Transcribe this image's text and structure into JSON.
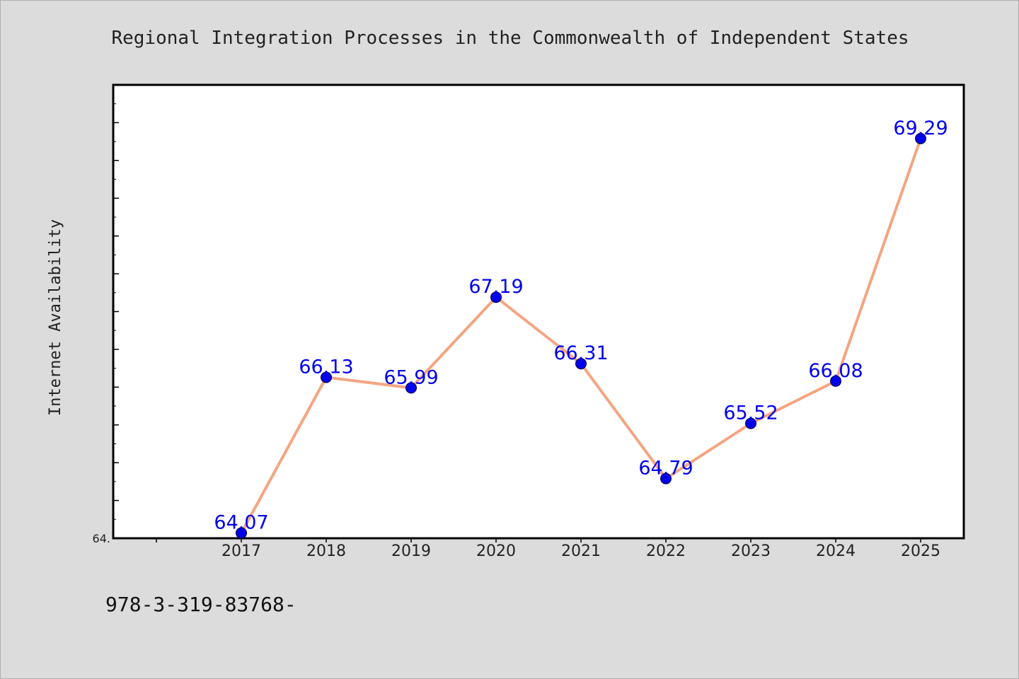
{
  "chart_data": {
    "type": "line",
    "title": "Regional Integration Processes in the Commonwealth of Independent States",
    "xlabel": "",
    "ylabel": "Internet Availability",
    "categories": [
      "2017",
      "2018",
      "2019",
      "2020",
      "2021",
      "2022",
      "2023",
      "2024",
      "2025"
    ],
    "series": [
      {
        "values": [
          64.07,
          66.13,
          65.99,
          67.19,
          66.31,
          64.79,
          65.52,
          66.08,
          69.29
        ],
        "labels": [
          "64.07",
          "66.13",
          "65.99",
          "67.19",
          "66.31",
          "64.79",
          "65.52",
          "66.08",
          "69.29"
        ]
      }
    ],
    "ylim": [
      64.0,
      70.0
    ],
    "ytick_labels": [
      "64."
    ],
    "grid": false,
    "line_color": "#f4a582",
    "marker_color": "#0000ee",
    "label_color": "#0000ee"
  },
  "footer": {
    "text": "978-3-319-83768-"
  }
}
